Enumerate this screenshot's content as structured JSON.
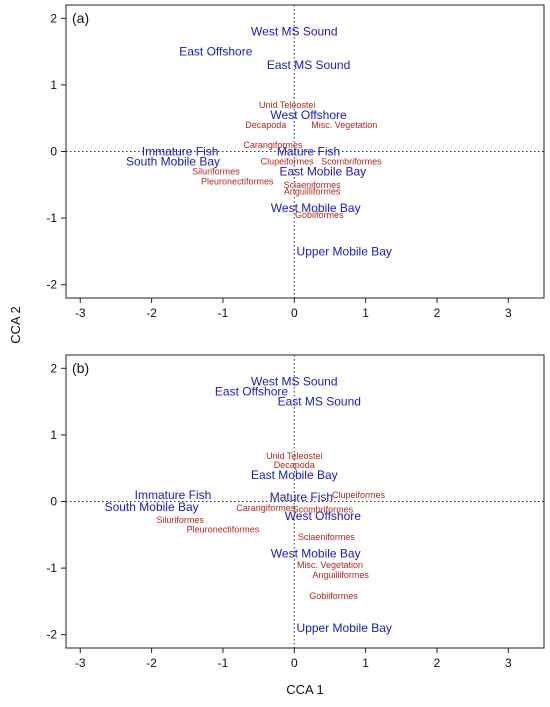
{
  "xlabel": "CCA 1",
  "ylabel": "CCA 2",
  "chart_data": [
    {
      "type": "scatter",
      "panel": "(a)",
      "xlim": [
        -3.2,
        3.5
      ],
      "ylim": [
        -2.2,
        2.2
      ],
      "xticks": [
        -3,
        -2,
        -1,
        0,
        1,
        2,
        3
      ],
      "yticks": [
        -2,
        -1,
        0,
        1,
        2
      ],
      "reference_lines": "dotted lines at x = 0 and y = 0",
      "groups": [
        {
          "color": "#1a1ab8",
          "points": [
            {
              "label": "West MS Sound",
              "x": 0.0,
              "y": 1.8
            },
            {
              "label": "East Offshore",
              "x": -1.1,
              "y": 1.5
            },
            {
              "label": "East MS Sound",
              "x": 0.2,
              "y": 1.3
            },
            {
              "label": "West Offshore",
              "x": 0.2,
              "y": 0.55
            },
            {
              "label": "Immature Fish",
              "x": -1.6,
              "y": 0.0
            },
            {
              "label": "Mature Fish",
              "x": 0.2,
              "y": 0.0
            },
            {
              "label": "South Mobile Bay",
              "x": -1.7,
              "y": -0.15
            },
            {
              "label": "East Mobile Bay",
              "x": 0.4,
              "y": -0.3
            },
            {
              "label": "West Mobile Bay",
              "x": 0.3,
              "y": -0.85
            },
            {
              "label": "Upper Mobile Bay",
              "x": 0.7,
              "y": -1.5
            }
          ]
        },
        {
          "color": "#b0281e",
          "points": [
            {
              "label": "Unid Teleostei",
              "x": -0.1,
              "y": 0.7
            },
            {
              "label": "Decapoda",
              "x": -0.4,
              "y": 0.4
            },
            {
              "label": "Misc. Vegetation",
              "x": 0.7,
              "y": 0.4
            },
            {
              "label": "Carangiformes",
              "x": -0.3,
              "y": 0.1
            },
            {
              "label": "Clupeiformes",
              "x": -0.1,
              "y": -0.15
            },
            {
              "label": "Scombriformes",
              "x": 0.8,
              "y": -0.15
            },
            {
              "label": "Siluriformes",
              "x": -1.1,
              "y": -0.3
            },
            {
              "label": "Pleuronectiformes",
              "x": -0.8,
              "y": -0.45
            },
            {
              "label": "Sciaeniformes",
              "x": 0.25,
              "y": -0.5
            },
            {
              "label": "Anguilliformes",
              "x": 0.25,
              "y": -0.6
            },
            {
              "label": "Gobiiformes",
              "x": 0.35,
              "y": -0.95
            }
          ]
        }
      ]
    },
    {
      "type": "scatter",
      "panel": "(b)",
      "xlim": [
        -3.2,
        3.5
      ],
      "ylim": [
        -2.2,
        2.2
      ],
      "xticks": [
        -3,
        -2,
        -1,
        0,
        1,
        2,
        3
      ],
      "yticks": [
        -2,
        -1,
        0,
        1,
        2
      ],
      "reference_lines": "dotted lines at x = 0 and y = 0",
      "groups": [
        {
          "color": "#1a1ab8",
          "points": [
            {
              "label": "West MS Sound",
              "x": 0.0,
              "y": 1.8
            },
            {
              "label": "East Offshore",
              "x": -0.6,
              "y": 1.65
            },
            {
              "label": "East MS Sound",
              "x": 0.35,
              "y": 1.5
            },
            {
              "label": "East Mobile Bay",
              "x": 0.0,
              "y": 0.4
            },
            {
              "label": "Immature Fish",
              "x": -1.7,
              "y": 0.1
            },
            {
              "label": "Mature Fish",
              "x": 0.1,
              "y": 0.07
            },
            {
              "label": "South Mobile Bay",
              "x": -2.0,
              "y": -0.08
            },
            {
              "label": "West Offshore",
              "x": 0.4,
              "y": -0.22
            },
            {
              "label": "West Mobile Bay",
              "x": 0.3,
              "y": -0.78
            },
            {
              "label": "Upper Mobile Bay",
              "x": 0.7,
              "y": -1.9
            }
          ]
        },
        {
          "color": "#b0281e",
          "points": [
            {
              "label": "Unid Teleostei",
              "x": 0.0,
              "y": 0.68
            },
            {
              "label": "Decapoda",
              "x": 0.0,
              "y": 0.55
            },
            {
              "label": "Clupeiformes",
              "x": 0.9,
              "y": 0.1
            },
            {
              "label": "Carangiformes",
              "x": -0.4,
              "y": -0.1
            },
            {
              "label": "Scombriformes",
              "x": 0.4,
              "y": -0.12
            },
            {
              "label": "Siluriformes",
              "x": -1.6,
              "y": -0.28
            },
            {
              "label": "Pleuronectiformes",
              "x": -1.0,
              "y": -0.42
            },
            {
              "label": "Sciaeniformes",
              "x": 0.45,
              "y": -0.53
            },
            {
              "label": "Misc. Vegetation",
              "x": 0.5,
              "y": -0.95
            },
            {
              "label": "Anguilliformes",
              "x": 0.65,
              "y": -1.1
            },
            {
              "label": "Gobiiformes",
              "x": 0.55,
              "y": -1.42
            }
          ]
        }
      ]
    }
  ]
}
